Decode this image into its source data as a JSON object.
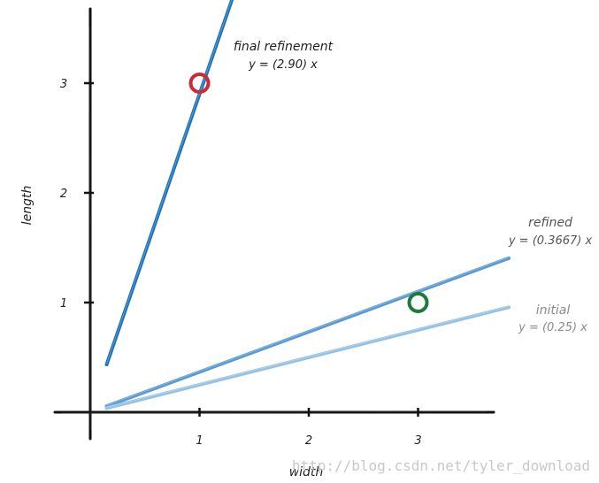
{
  "chart_data": {
    "type": "line",
    "xlabel": "width",
    "ylabel": "length",
    "xlim": [
      0,
      3.75
    ],
    "ylim": [
      0,
      3.7
    ],
    "x_ticks": [
      "1",
      "2",
      "3"
    ],
    "y_ticks": [
      "1",
      "2",
      "3"
    ],
    "grid": false,
    "series": [
      {
        "name": "final refinement",
        "equation": "y = (2.90) x",
        "slope": 2.9,
        "x": [
          0.15,
          1.3
        ],
        "color": "#1f73b8"
      },
      {
        "name": "refined",
        "equation": "y = (0.3667) x",
        "slope": 0.3667,
        "x": [
          0.15,
          3.83
        ],
        "color": "#5b9bd1"
      },
      {
        "name": "initial",
        "equation": "y = (0.25) x",
        "slope": 0.25,
        "x": [
          0.15,
          3.83
        ],
        "color": "#95c1e3"
      }
    ],
    "points": [
      {
        "x": 1,
        "y": 3,
        "color": "#cc2a36"
      },
      {
        "x": 3,
        "y": 1,
        "color": "#1e7a3c"
      }
    ]
  },
  "watermark": "http://blog.csdn.net/tyler_download"
}
